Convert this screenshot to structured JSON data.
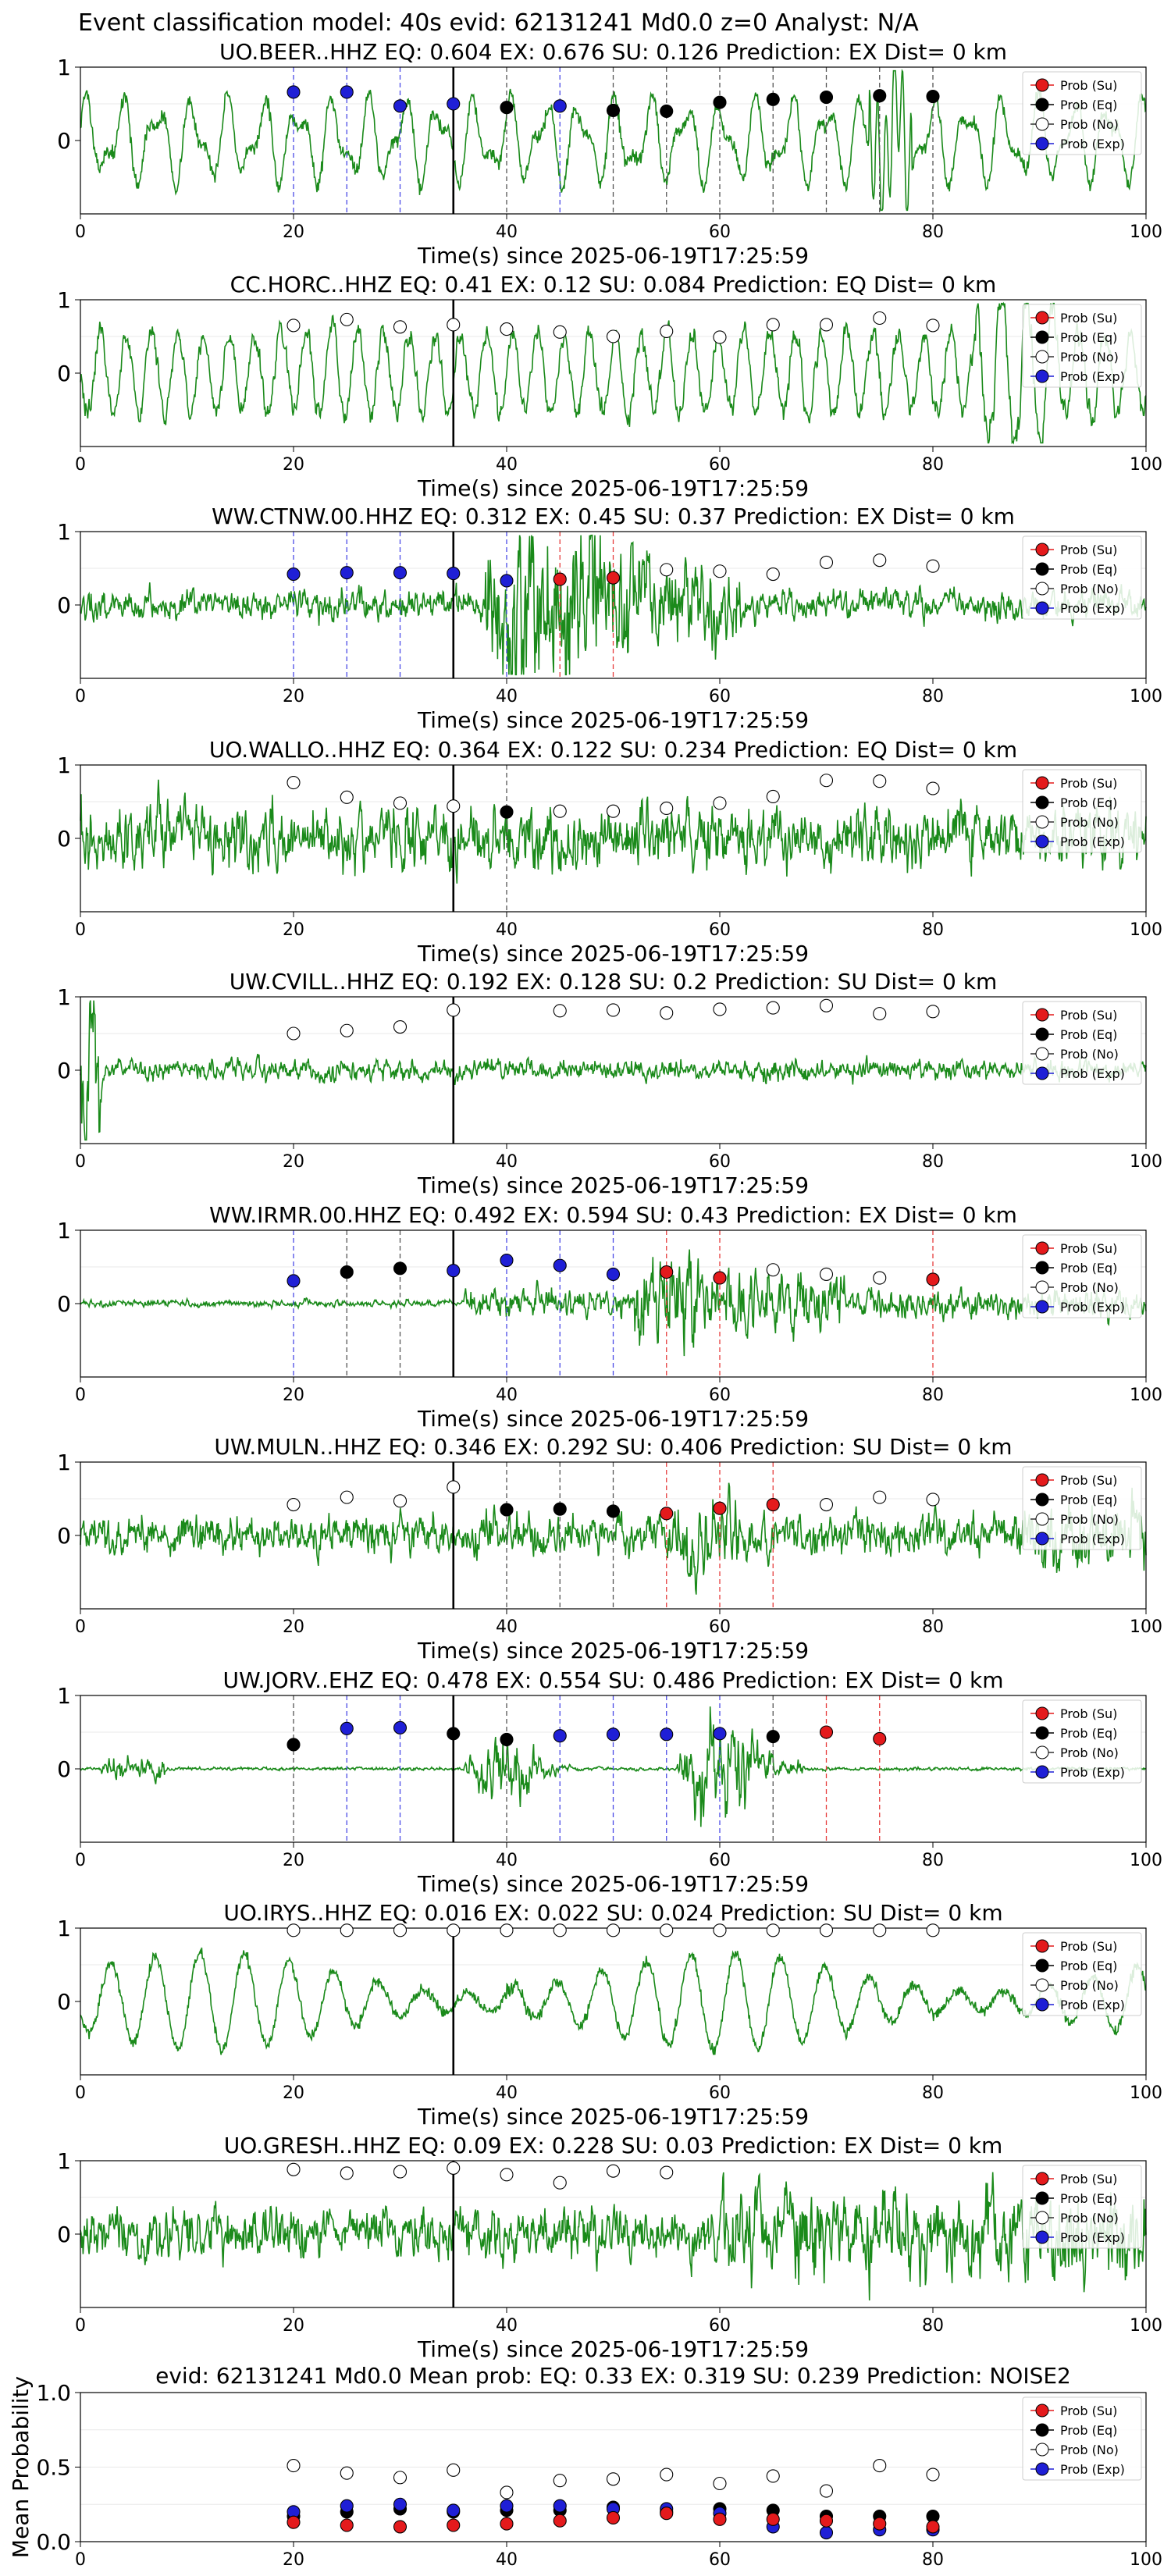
{
  "suptitle": "Event classification model: 40s evid: 62131241 Md0.0 z=0 Analyst: N/A",
  "legend_labels": [
    "Prob (Su)",
    "Prob (Eq)",
    "Prob (No)",
    "Prob (Exp)"
  ],
  "colors": {
    "su": "#e41a1c",
    "eq": "#000000",
    "no": "#ffffff",
    "exp": "#1f1fd6",
    "trace": "#1a8a1a",
    "vline_exp": "#4a4ae6",
    "vline_eq": "#555555",
    "vline_su": "#e63c3c",
    "pick": "#000000"
  },
  "chart_data": [
    {
      "type": "line",
      "station": "UO.BEER..HHZ",
      "title": "UO.BEER..HHZ   EQ: 0.604  EX: 0.676  SU: 0.126   Prediction: EX    Dist= 0 km",
      "xlabel": "Time(s) since 2025-06-19T17:25:59",
      "xlim": [
        0,
        100
      ],
      "ylim": [
        -1,
        1
      ],
      "xticks": [
        0,
        20,
        40,
        60,
        80,
        100
      ],
      "yticks": [
        1,
        0
      ],
      "pick_time": 35,
      "waveform": "low-frequency",
      "points": [
        {
          "t": 20,
          "p": 0.66,
          "cls": "exp"
        },
        {
          "t": 25,
          "p": 0.66,
          "cls": "exp"
        },
        {
          "t": 30,
          "p": 0.47,
          "cls": "exp"
        },
        {
          "t": 35,
          "p": 0.5,
          "cls": "exp"
        },
        {
          "t": 40,
          "p": 0.45,
          "cls": "eq"
        },
        {
          "t": 45,
          "p": 0.47,
          "cls": "exp"
        },
        {
          "t": 50,
          "p": 0.41,
          "cls": "eq"
        },
        {
          "t": 55,
          "p": 0.4,
          "cls": "eq"
        },
        {
          "t": 60,
          "p": 0.52,
          "cls": "eq"
        },
        {
          "t": 65,
          "p": 0.56,
          "cls": "eq"
        },
        {
          "t": 70,
          "p": 0.59,
          "cls": "eq"
        },
        {
          "t": 75,
          "p": 0.61,
          "cls": "eq"
        },
        {
          "t": 80,
          "p": 0.6,
          "cls": "eq"
        }
      ]
    },
    {
      "type": "line",
      "station": "CC.HORC..HHZ",
      "title": "CC.HORC..HHZ   EQ: 0.41  EX: 0.12  SU: 0.084   Prediction: EQ    Dist= 0 km",
      "xlabel": "Time(s) since 2025-06-19T17:25:59",
      "xlim": [
        0,
        100
      ],
      "ylim": [
        -1,
        1
      ],
      "xticks": [
        0,
        20,
        40,
        60,
        80,
        100
      ],
      "yticks": [
        1,
        0
      ],
      "pick_time": 35,
      "waveform": "medium",
      "points": [
        {
          "t": 20,
          "p": 0.65,
          "cls": "no"
        },
        {
          "t": 25,
          "p": 0.73,
          "cls": "no"
        },
        {
          "t": 30,
          "p": 0.63,
          "cls": "no"
        },
        {
          "t": 35,
          "p": 0.66,
          "cls": "no"
        },
        {
          "t": 40,
          "p": 0.6,
          "cls": "no"
        },
        {
          "t": 45,
          "p": 0.56,
          "cls": "no"
        },
        {
          "t": 50,
          "p": 0.5,
          "cls": "no"
        },
        {
          "t": 55,
          "p": 0.57,
          "cls": "no"
        },
        {
          "t": 60,
          "p": 0.49,
          "cls": "no"
        },
        {
          "t": 65,
          "p": 0.66,
          "cls": "no"
        },
        {
          "t": 70,
          "p": 0.66,
          "cls": "no"
        },
        {
          "t": 75,
          "p": 0.75,
          "cls": "no"
        },
        {
          "t": 80,
          "p": 0.65,
          "cls": "no"
        }
      ]
    },
    {
      "type": "line",
      "station": "WW.CTNW.00.HHZ",
      "title": "WW.CTNW.00.HHZ   EQ: 0.312  EX: 0.45  SU: 0.37   Prediction: EX    Dist= 0 km",
      "xlabel": "Time(s) since 2025-06-19T17:25:59",
      "xlim": [
        0,
        100
      ],
      "ylim": [
        -1,
        1
      ],
      "xticks": [
        0,
        20,
        40,
        60,
        80,
        100
      ],
      "yticks": [
        1,
        0
      ],
      "pick_time": 35,
      "waveform": "burst-mid",
      "points": [
        {
          "t": 20,
          "p": 0.42,
          "cls": "exp"
        },
        {
          "t": 25,
          "p": 0.44,
          "cls": "exp"
        },
        {
          "t": 30,
          "p": 0.44,
          "cls": "exp"
        },
        {
          "t": 35,
          "p": 0.43,
          "cls": "exp"
        },
        {
          "t": 40,
          "p": 0.33,
          "cls": "exp"
        },
        {
          "t": 45,
          "p": 0.35,
          "cls": "su"
        },
        {
          "t": 50,
          "p": 0.37,
          "cls": "su"
        },
        {
          "t": 55,
          "p": 0.48,
          "cls": "no"
        },
        {
          "t": 60,
          "p": 0.46,
          "cls": "no"
        },
        {
          "t": 65,
          "p": 0.42,
          "cls": "no"
        },
        {
          "t": 70,
          "p": 0.58,
          "cls": "no"
        },
        {
          "t": 75,
          "p": 0.61,
          "cls": "no"
        },
        {
          "t": 80,
          "p": 0.53,
          "cls": "no"
        }
      ]
    },
    {
      "type": "line",
      "station": "UO.WALLO..HHZ",
      "title": "UO.WALLO..HHZ   EQ: 0.364  EX: 0.122  SU: 0.234   Prediction: EQ    Dist= 0 km",
      "xlabel": "Time(s) since 2025-06-19T17:25:59",
      "xlim": [
        0,
        100
      ],
      "ylim": [
        -1,
        1
      ],
      "xticks": [
        0,
        20,
        40,
        60,
        80,
        100
      ],
      "yticks": [
        1,
        0
      ],
      "pick_time": 35,
      "waveform": "noisy",
      "points": [
        {
          "t": 20,
          "p": 0.76,
          "cls": "no"
        },
        {
          "t": 25,
          "p": 0.56,
          "cls": "no"
        },
        {
          "t": 30,
          "p": 0.48,
          "cls": "no"
        },
        {
          "t": 35,
          "p": 0.44,
          "cls": "no"
        },
        {
          "t": 40,
          "p": 0.36,
          "cls": "eq"
        },
        {
          "t": 45,
          "p": 0.37,
          "cls": "no"
        },
        {
          "t": 50,
          "p": 0.37,
          "cls": "no"
        },
        {
          "t": 55,
          "p": 0.41,
          "cls": "no"
        },
        {
          "t": 60,
          "p": 0.48,
          "cls": "no"
        },
        {
          "t": 65,
          "p": 0.57,
          "cls": "no"
        },
        {
          "t": 70,
          "p": 0.79,
          "cls": "no"
        },
        {
          "t": 75,
          "p": 0.78,
          "cls": "no"
        },
        {
          "t": 80,
          "p": 0.68,
          "cls": "no"
        }
      ]
    },
    {
      "type": "line",
      "station": "UW.CVILL..HHZ",
      "title": "UW.CVILL..HHZ   EQ: 0.192  EX: 0.128  SU: 0.2   Prediction: SU    Dist= 0 km",
      "xlabel": "Time(s) since 2025-06-19T17:25:59",
      "xlim": [
        0,
        100
      ],
      "ylim": [
        -1,
        1
      ],
      "xticks": [
        0,
        20,
        40,
        60,
        80,
        100
      ],
      "yticks": [
        1,
        0
      ],
      "pick_time": 35,
      "waveform": "quiet",
      "points": [
        {
          "t": 20,
          "p": 0.5,
          "cls": "no"
        },
        {
          "t": 25,
          "p": 0.54,
          "cls": "no"
        },
        {
          "t": 30,
          "p": 0.59,
          "cls": "no"
        },
        {
          "t": 35,
          "p": 0.82,
          "cls": "no"
        },
        {
          "t": 45,
          "p": 0.81,
          "cls": "no"
        },
        {
          "t": 50,
          "p": 0.82,
          "cls": "no"
        },
        {
          "t": 55,
          "p": 0.78,
          "cls": "no"
        },
        {
          "t": 60,
          "p": 0.83,
          "cls": "no"
        },
        {
          "t": 65,
          "p": 0.85,
          "cls": "no"
        },
        {
          "t": 70,
          "p": 0.88,
          "cls": "no"
        },
        {
          "t": 75,
          "p": 0.77,
          "cls": "no"
        },
        {
          "t": 80,
          "p": 0.8,
          "cls": "no"
        }
      ]
    },
    {
      "type": "line",
      "station": "WW.IRMR.00.HHZ",
      "title": "WW.IRMR.00.HHZ   EQ: 0.492  EX: 0.594  SU: 0.43   Prediction: EX    Dist= 0 km",
      "xlabel": "Time(s) since 2025-06-19T17:25:59",
      "xlim": [
        0,
        100
      ],
      "ylim": [
        -1,
        1
      ],
      "xticks": [
        0,
        20,
        40,
        60,
        80,
        100
      ],
      "yticks": [
        1,
        0
      ],
      "pick_time": 35,
      "waveform": "burst-late",
      "points": [
        {
          "t": 20,
          "p": 0.31,
          "cls": "exp"
        },
        {
          "t": 25,
          "p": 0.43,
          "cls": "eq"
        },
        {
          "t": 30,
          "p": 0.48,
          "cls": "eq"
        },
        {
          "t": 35,
          "p": 0.45,
          "cls": "exp"
        },
        {
          "t": 40,
          "p": 0.59,
          "cls": "exp"
        },
        {
          "t": 45,
          "p": 0.52,
          "cls": "exp"
        },
        {
          "t": 50,
          "p": 0.4,
          "cls": "exp"
        },
        {
          "t": 55,
          "p": 0.43,
          "cls": "su"
        },
        {
          "t": 60,
          "p": 0.35,
          "cls": "su"
        },
        {
          "t": 65,
          "p": 0.46,
          "cls": "no"
        },
        {
          "t": 70,
          "p": 0.4,
          "cls": "no"
        },
        {
          "t": 75,
          "p": 0.35,
          "cls": "no"
        },
        {
          "t": 80,
          "p": 0.33,
          "cls": "su"
        }
      ]
    },
    {
      "type": "line",
      "station": "UW.MULN..HHZ",
      "title": "UW.MULN..HHZ   EQ: 0.346  EX: 0.292  SU: 0.406   Prediction: SU    Dist= 0 km",
      "xlabel": "Time(s) since 2025-06-19T17:25:59",
      "xlim": [
        0,
        100
      ],
      "ylim": [
        -1,
        1
      ],
      "xticks": [
        0,
        20,
        40,
        60,
        80,
        100
      ],
      "yticks": [
        1,
        0
      ],
      "pick_time": 35,
      "waveform": "noisy-mid",
      "points": [
        {
          "t": 20,
          "p": 0.42,
          "cls": "no"
        },
        {
          "t": 25,
          "p": 0.52,
          "cls": "no"
        },
        {
          "t": 30,
          "p": 0.47,
          "cls": "no"
        },
        {
          "t": 35,
          "p": 0.66,
          "cls": "no"
        },
        {
          "t": 40,
          "p": 0.35,
          "cls": "eq"
        },
        {
          "t": 45,
          "p": 0.36,
          "cls": "eq"
        },
        {
          "t": 50,
          "p": 0.33,
          "cls": "eq"
        },
        {
          "t": 55,
          "p": 0.3,
          "cls": "su"
        },
        {
          "t": 60,
          "p": 0.37,
          "cls": "su"
        },
        {
          "t": 65,
          "p": 0.42,
          "cls": "su"
        },
        {
          "t": 70,
          "p": 0.42,
          "cls": "no"
        },
        {
          "t": 75,
          "p": 0.52,
          "cls": "no"
        },
        {
          "t": 80,
          "p": 0.49,
          "cls": "no"
        }
      ]
    },
    {
      "type": "line",
      "station": "UW.JORV..EHZ",
      "title": "UW.JORV..EHZ   EQ: 0.478  EX: 0.554  SU: 0.486   Prediction: EX    Dist= 0 km",
      "xlabel": "Time(s) since 2025-06-19T17:25:59",
      "xlim": [
        0,
        100
      ],
      "ylim": [
        -1,
        1
      ],
      "xticks": [
        0,
        20,
        40,
        60,
        80,
        100
      ],
      "yticks": [
        1,
        0
      ],
      "pick_time": 35,
      "waveform": "bursts",
      "points": [
        {
          "t": 20,
          "p": 0.33,
          "cls": "eq"
        },
        {
          "t": 25,
          "p": 0.55,
          "cls": "exp"
        },
        {
          "t": 30,
          "p": 0.56,
          "cls": "exp"
        },
        {
          "t": 35,
          "p": 0.48,
          "cls": "eq"
        },
        {
          "t": 40,
          "p": 0.4,
          "cls": "eq"
        },
        {
          "t": 45,
          "p": 0.45,
          "cls": "exp"
        },
        {
          "t": 50,
          "p": 0.47,
          "cls": "exp"
        },
        {
          "t": 55,
          "p": 0.47,
          "cls": "exp"
        },
        {
          "t": 60,
          "p": 0.48,
          "cls": "exp"
        },
        {
          "t": 65,
          "p": 0.44,
          "cls": "eq"
        },
        {
          "t": 70,
          "p": 0.5,
          "cls": "su"
        },
        {
          "t": 75,
          "p": 0.41,
          "cls": "su"
        }
      ]
    },
    {
      "type": "line",
      "station": "UO.IRYS..HHZ",
      "title": "UO.IRYS..HHZ   EQ: 0.016  EX: 0.022  SU: 0.024   Prediction: SU    Dist= 0 km",
      "xlabel": "Time(s) since 2025-06-19T17:25:59",
      "xlim": [
        0,
        100
      ],
      "ylim": [
        -1,
        1
      ],
      "xticks": [
        0,
        20,
        40,
        60,
        80,
        100
      ],
      "yticks": [
        1,
        0
      ],
      "pick_time": 35,
      "waveform": "low-frequency-big",
      "points": [
        {
          "t": 20,
          "p": 0.97,
          "cls": "no"
        },
        {
          "t": 25,
          "p": 0.97,
          "cls": "no"
        },
        {
          "t": 30,
          "p": 0.97,
          "cls": "no"
        },
        {
          "t": 35,
          "p": 0.97,
          "cls": "no"
        },
        {
          "t": 40,
          "p": 0.97,
          "cls": "no"
        },
        {
          "t": 45,
          "p": 0.97,
          "cls": "no"
        },
        {
          "t": 50,
          "p": 0.97,
          "cls": "no"
        },
        {
          "t": 55,
          "p": 0.97,
          "cls": "no"
        },
        {
          "t": 60,
          "p": 0.97,
          "cls": "no"
        },
        {
          "t": 65,
          "p": 0.97,
          "cls": "no"
        },
        {
          "t": 70,
          "p": 0.97,
          "cls": "no"
        },
        {
          "t": 75,
          "p": 0.97,
          "cls": "no"
        },
        {
          "t": 80,
          "p": 0.97,
          "cls": "no"
        }
      ]
    },
    {
      "type": "line",
      "station": "UO.GRESH..HHZ",
      "title": "UO.GRESH..HHZ   EQ: 0.09  EX: 0.228  SU: 0.03   Prediction: EX    Dist= 0 km",
      "xlabel": "Time(s) since 2025-06-19T17:25:59",
      "xlim": [
        0,
        100
      ],
      "ylim": [
        -1,
        1
      ],
      "xticks": [
        0,
        20,
        40,
        60,
        80,
        100
      ],
      "yticks": [
        1,
        0
      ],
      "pick_time": 35,
      "waveform": "noisy-late",
      "points": [
        {
          "t": 20,
          "p": 0.88,
          "cls": "no"
        },
        {
          "t": 25,
          "p": 0.83,
          "cls": "no"
        },
        {
          "t": 30,
          "p": 0.85,
          "cls": "no"
        },
        {
          "t": 35,
          "p": 0.9,
          "cls": "no"
        },
        {
          "t": 40,
          "p": 0.81,
          "cls": "no"
        },
        {
          "t": 45,
          "p": 0.7,
          "cls": "no"
        },
        {
          "t": 50,
          "p": 0.86,
          "cls": "no"
        },
        {
          "t": 55,
          "p": 0.84,
          "cls": "no"
        }
      ]
    },
    {
      "type": "scatter",
      "station": "mean",
      "title": "evid: 62131241  Md0.0   Mean prob:   EQ: 0.33  EX: 0.319  SU: 0.239   Prediction: NOISE2",
      "xlabel": "",
      "ylabel": "Mean Probability",
      "xlim": [
        0,
        100
      ],
      "ylim": [
        0,
        1
      ],
      "xticks": [
        0,
        20,
        40,
        60,
        80,
        100
      ],
      "yticks": [
        1.0,
        0.5,
        0.0
      ],
      "x": [
        20,
        25,
        30,
        35,
        40,
        45,
        50,
        55,
        60,
        65,
        70,
        75,
        80
      ],
      "series": [
        {
          "cls": "no",
          "values": [
            0.51,
            0.46,
            0.43,
            0.48,
            0.33,
            0.41,
            0.42,
            0.45,
            0.39,
            0.44,
            0.34,
            0.51,
            0.45
          ]
        },
        {
          "cls": "eq",
          "values": [
            0.17,
            0.2,
            0.22,
            0.2,
            0.21,
            0.21,
            0.23,
            0.2,
            0.22,
            0.21,
            0.17,
            0.17,
            0.17
          ]
        },
        {
          "cls": "exp",
          "values": [
            0.2,
            0.24,
            0.25,
            0.21,
            0.24,
            0.24,
            0.22,
            0.22,
            0.19,
            0.1,
            0.06,
            0.08,
            0.08
          ]
        },
        {
          "cls": "su",
          "values": [
            0.13,
            0.11,
            0.1,
            0.11,
            0.12,
            0.14,
            0.16,
            0.19,
            0.15,
            0.15,
            0.14,
            0.12,
            0.1
          ]
        }
      ]
    }
  ]
}
